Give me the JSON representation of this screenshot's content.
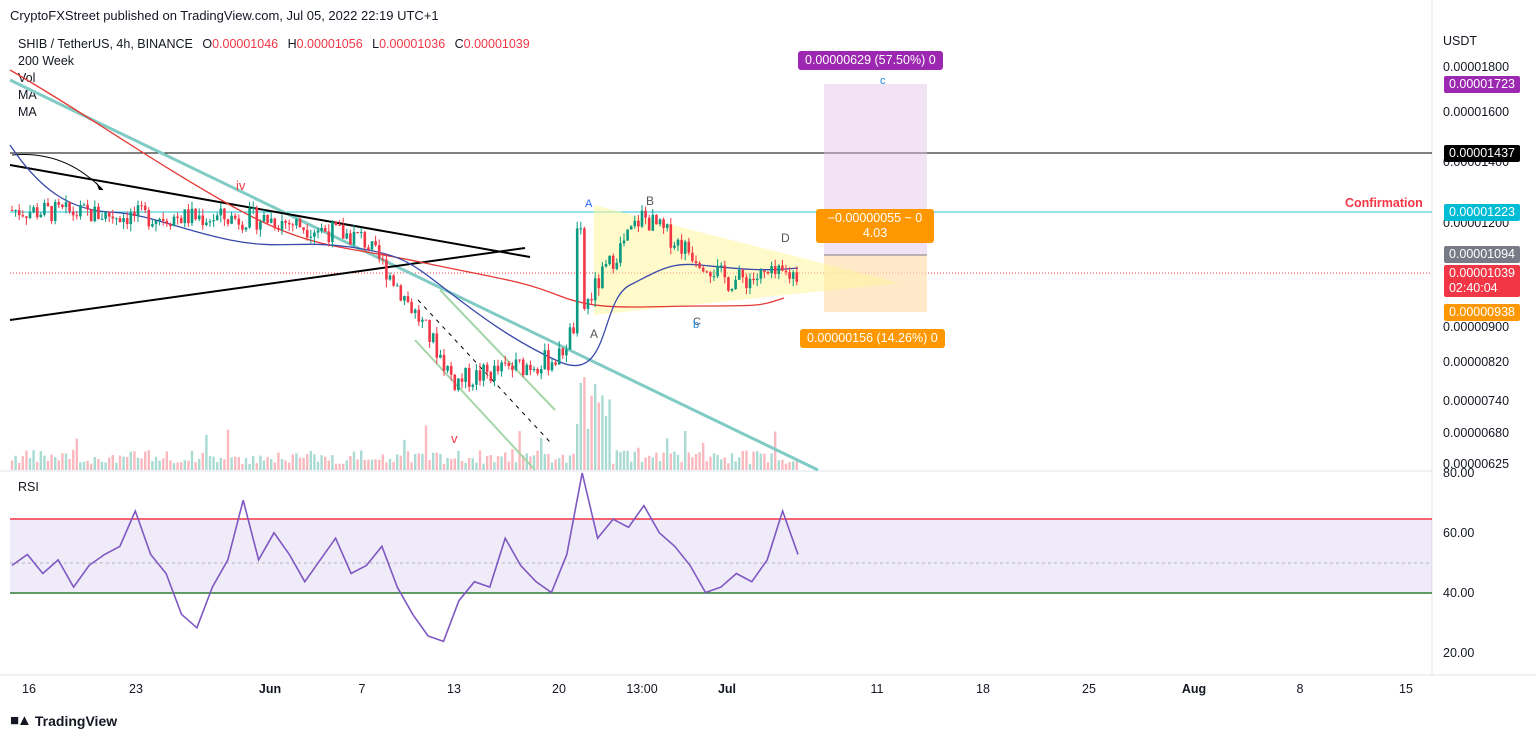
{
  "header": {
    "published": "CryptoFXStreet published on TradingView.com, Jul 05, 2022 22:19 UTC+1"
  },
  "legend": {
    "symbol": "SHIB / TetherUS, 4h, BINANCE",
    "o_label": "O",
    "o": "0.00001046",
    "h_label": "H",
    "h": "0.00001056",
    "l_label": "L",
    "l": "0.00001036",
    "c_label": "C",
    "c": "0.00001039",
    "indicators": [
      "200 Week",
      "Vol",
      "MA",
      "MA"
    ]
  },
  "price_axis": {
    "currency": "USDT",
    "ticks": [
      "0.00001800",
      "0.00001600",
      "0.00001400",
      "0.00001200",
      "0.00000900",
      "0.00000820",
      "0.00000740",
      "0.00000680",
      "0.00000625"
    ]
  },
  "price_badges": {
    "target": {
      "text": "0.00001723",
      "color": "#9c27b0"
    },
    "resistance": {
      "text": "0.00001437",
      "color": "#000000"
    },
    "confirmation": {
      "text": "0.00001223",
      "color": "#00bcd4"
    },
    "ma": {
      "text": "0.00001094",
      "color": "#787b86"
    },
    "last": {
      "text": "0.00001039",
      "color": "#f23645"
    },
    "countdown": "02:40:04",
    "stop": {
      "text": "0.00000938",
      "color": "#ff9800"
    }
  },
  "annotations": {
    "confirmation": "Confirmation",
    "target_info": "0.00000629 (57.50%) 0",
    "rr_info_1": "−0.00000055 ~ 0",
    "rr_info_2": "4.03",
    "stop_info": "0.00000156 (14.26%) 0",
    "wave_iv": "iv",
    "wave_v": "v",
    "wave_A_top": "A",
    "wave_A": "A",
    "wave_B": "B",
    "wave_C": "C",
    "wave_b": "b",
    "wave_D": "D",
    "wave_c": "c"
  },
  "rsi": {
    "label": "RSI",
    "ticks": [
      "80.00",
      "60.00",
      "40.00",
      "20.00"
    ]
  },
  "time_axis": {
    "labels": [
      "16",
      "23",
      "Jun",
      "7",
      "13",
      "20",
      "13:00",
      "Jul",
      "11",
      "18",
      "25",
      "Aug",
      "8",
      "15"
    ]
  },
  "brand": {
    "name": "TradingView"
  },
  "chart_data": [
    {
      "type": "candlestick",
      "title": "SHIB / TetherUS, 4h, BINANCE",
      "ylabel": "USDT",
      "ylim": [
        6.25e-06,
        1.8e-05
      ],
      "x_ticks": [
        "16",
        "23",
        "Jun",
        "7",
        "13",
        "20",
        "13:00",
        "Jul",
        "11",
        "18",
        "25",
        "Aug",
        "8",
        "15"
      ],
      "approx_close_path": [
        {
          "x": "16",
          "y": 1.24e-05
        },
        {
          "x": "23",
          "y": 1.22e-05
        },
        {
          "x": "Jun",
          "y": 1.21e-05
        },
        {
          "x": "7",
          "y": 1.15e-05
        },
        {
          "x": "13",
          "y": 7.8e-06
        },
        {
          "x": "20",
          "y": 8.3e-06
        },
        {
          "x": "13:00",
          "y": 1.22e-05
        },
        {
          "x": "Jul",
          "y": 1.02e-05
        },
        {
          "x": "Jul 05",
          "y": 1.039e-05
        }
      ],
      "levels": [
        {
          "name": "target",
          "y": 1.723e-05
        },
        {
          "name": "resistance",
          "y": 1.437e-05
        },
        {
          "name": "Confirmation",
          "y": 1.223e-05
        },
        {
          "name": "stop",
          "y": 9.38e-06
        }
      ]
    },
    {
      "type": "line",
      "title": "RSI",
      "ylim": [
        15,
        82
      ],
      "y_ticks": [
        80,
        60,
        40,
        20
      ],
      "bands": {
        "upper": 65,
        "lower": 40
      },
      "values": [
        48,
        52,
        45,
        50,
        40,
        48,
        52,
        55,
        68,
        52,
        45,
        30,
        25,
        40,
        50,
        72,
        50,
        60,
        52,
        42,
        50,
        58,
        45,
        48,
        55,
        40,
        30,
        22,
        20,
        35,
        42,
        40,
        58,
        48,
        42,
        38,
        52,
        82,
        58,
        65,
        62,
        70,
        60,
        55,
        48,
        38,
        40,
        45,
        42,
        50,
        68,
        52
      ]
    }
  ]
}
